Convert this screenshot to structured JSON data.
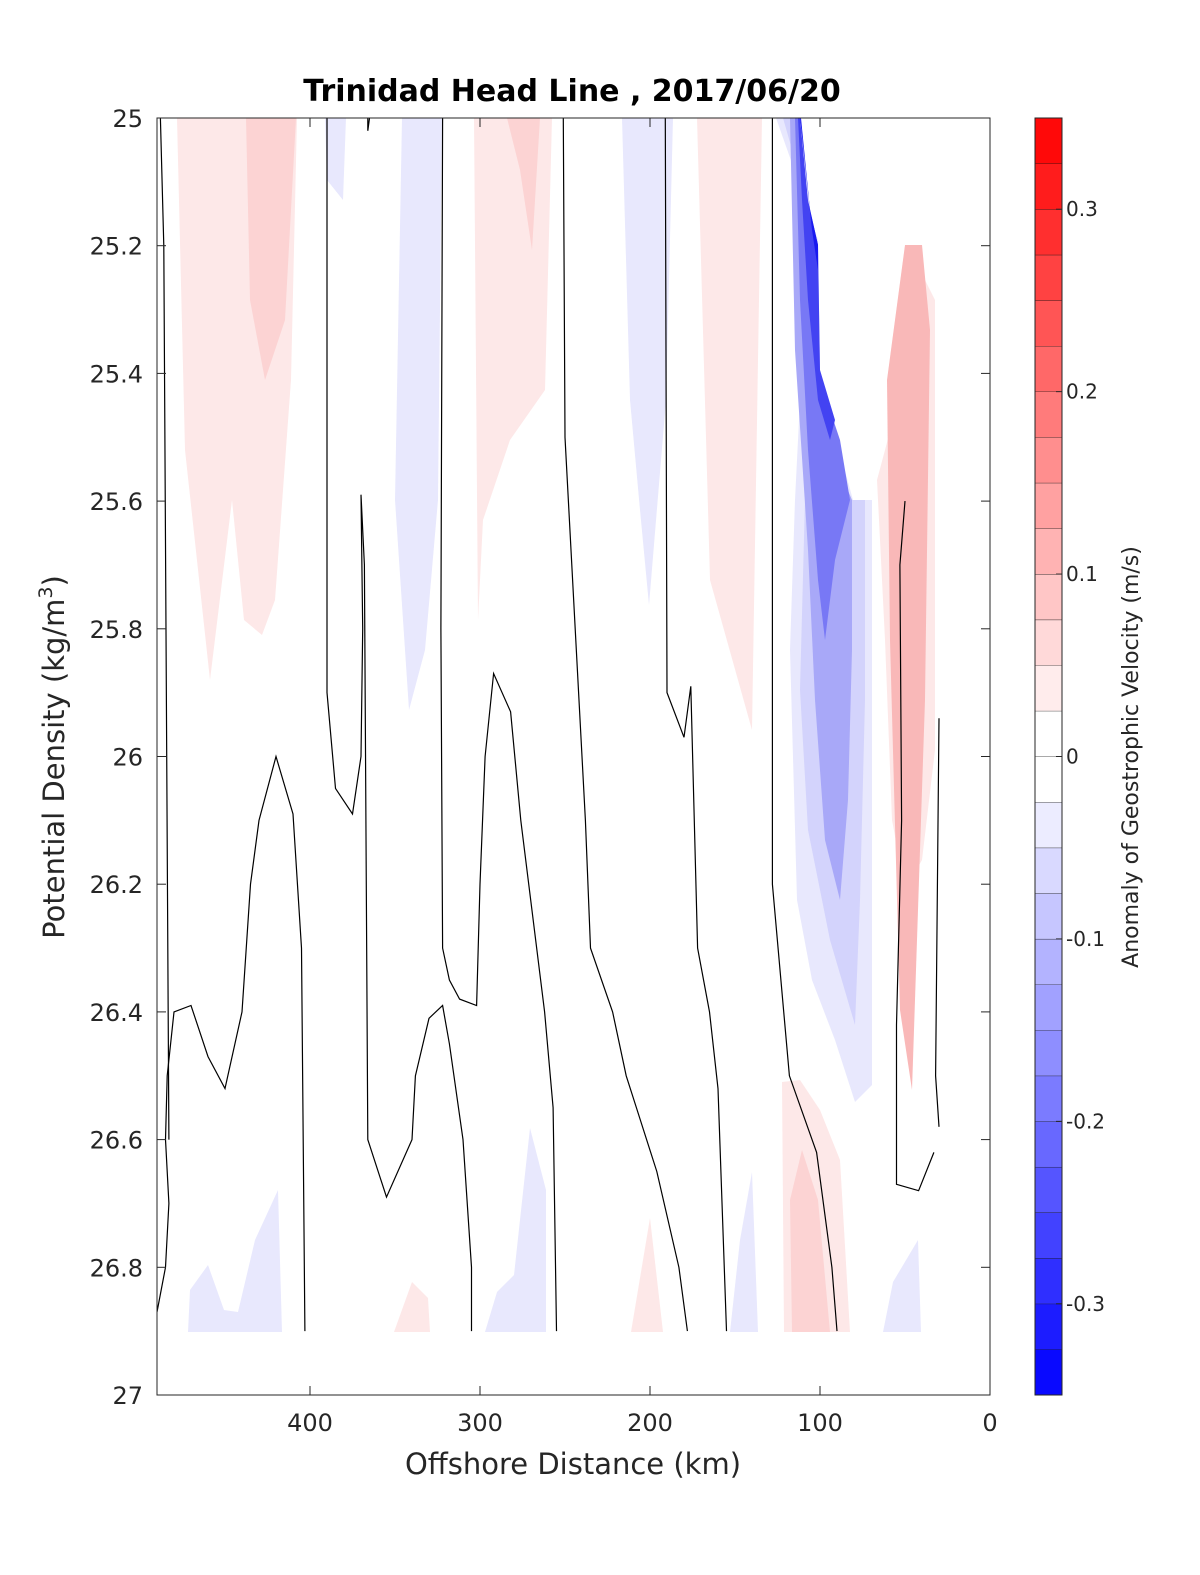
{
  "chart_data": {
    "type": "heatmap",
    "title": "Trinidad Head Line , 2017/06/20",
    "xlabel": "Offshore Distance (km)",
    "ylabel_main": "Potential Density (kg/m",
    "ylabel_sup": "3",
    "ylabel_close": ")",
    "colorbar_label": "Anomaly of Geostrophic Velocity (m/s)",
    "xlim": [
      490,
      0
    ],
    "ylim": [
      25,
      27
    ],
    "y_reversed": true,
    "x_ticks": [
      400,
      300,
      200,
      100,
      0
    ],
    "x_tick_labels": [
      "400",
      "300",
      "200",
      "100",
      "0"
    ],
    "y_ticks": [
      25,
      25.2,
      25.4,
      25.6,
      25.8,
      26,
      26.2,
      26.4,
      26.6,
      26.8,
      27
    ],
    "y_tick_labels": [
      "25",
      "25.2",
      "25.4",
      "25.6",
      "25.8",
      "26",
      "26.2",
      "26.4",
      "26.6",
      "26.8",
      "27"
    ],
    "colorbar_range": [
      -0.35,
      0.35
    ],
    "colorbar_ticks": [
      0.3,
      0.2,
      0.1,
      0,
      -0.1,
      -0.2,
      -0.3
    ],
    "colorbar_tick_labels": [
      "0.3",
      "0.2",
      "0.1",
      "0",
      "-0.1",
      "-0.2",
      "-0.3"
    ],
    "colormap": {
      "negative": "#0000ff",
      "zero": "#ffffff",
      "positive": "#ff0000"
    },
    "zero_contour_lines": [
      [
        [
          490,
          26.87
        ],
        [
          485,
          26.8
        ],
        [
          483,
          26.7
        ],
        [
          485,
          26.6
        ],
        [
          484,
          26.5
        ],
        [
          480,
          26.4
        ],
        [
          470,
          26.39
        ],
        [
          460,
          26.47
        ],
        [
          450,
          26.52
        ],
        [
          440,
          26.4
        ],
        [
          435,
          26.2
        ],
        [
          430,
          26.1
        ],
        [
          420,
          26.0
        ],
        [
          410,
          26.09
        ],
        [
          405,
          26.3
        ],
        [
          403,
          26.9
        ]
      ],
      [
        [
          483,
          26.6
        ],
        [
          486,
          25.2
        ],
        [
          488,
          25.0
        ]
      ],
      [
        [
          390,
          25.0
        ],
        [
          390,
          25.9
        ],
        [
          385,
          26.05
        ],
        [
          375,
          26.09
        ],
        [
          370,
          26.0
        ],
        [
          369,
          25.8
        ],
        [
          370,
          25.59
        ],
        [
          368,
          25.7
        ],
        [
          366,
          26.6
        ],
        [
          355,
          26.69
        ],
        [
          340,
          26.6
        ],
        [
          338,
          26.5
        ],
        [
          330,
          26.41
        ],
        [
          322,
          26.39
        ],
        [
          318,
          26.45
        ],
        [
          310,
          26.6
        ],
        [
          305,
          26.8
        ],
        [
          305,
          26.9
        ]
      ],
      [
        [
          366,
          25.0
        ],
        [
          366,
          25.02
        ],
        [
          365,
          25.0
        ]
      ],
      [
        [
          322,
          25.0
        ],
        [
          323,
          25.8
        ],
        [
          322,
          26.3
        ],
        [
          318,
          26.35
        ],
        [
          312,
          26.38
        ],
        [
          302,
          26.39
        ],
        [
          300,
          26.2
        ],
        [
          297,
          26.0
        ],
        [
          292,
          25.87
        ],
        [
          282,
          25.93
        ],
        [
          276,
          26.1
        ],
        [
          262,
          26.4
        ],
        [
          257,
          26.55
        ],
        [
          255,
          26.9
        ]
      ],
      [
        [
          251,
          25.0
        ],
        [
          250,
          25.5
        ],
        [
          238,
          26.1
        ],
        [
          235,
          26.3
        ],
        [
          222,
          26.4
        ],
        [
          214,
          26.5
        ],
        [
          196,
          26.65
        ],
        [
          183,
          26.8
        ],
        [
          178,
          26.9
        ]
      ],
      [
        [
          191,
          25.0
        ],
        [
          190,
          25.9
        ],
        [
          180,
          25.97
        ],
        [
          176,
          25.89
        ],
        [
          172,
          26.3
        ],
        [
          165,
          26.4
        ],
        [
          160,
          26.52
        ],
        [
          155,
          26.9
        ]
      ],
      [
        [
          128,
          25.0
        ],
        [
          128,
          26.2
        ],
        [
          118,
          26.5
        ],
        [
          102,
          26.62
        ],
        [
          93,
          26.8
        ],
        [
          90,
          26.9
        ]
      ],
      [
        [
          50,
          25.6
        ],
        [
          53,
          25.7
        ],
        [
          52,
          26.1
        ],
        [
          55,
          26.42
        ],
        [
          55,
          26.6
        ],
        [
          55,
          26.67
        ],
        [
          42,
          26.68
        ],
        [
          33,
          26.62
        ]
      ],
      [
        [
          30,
          25.94
        ],
        [
          32,
          26.5
        ],
        [
          30,
          26.58
        ]
      ]
    ]
  }
}
